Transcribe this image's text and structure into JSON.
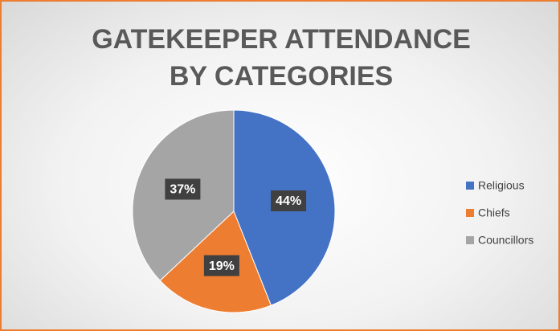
{
  "chart_data": {
    "type": "pie",
    "title": "GATEKEEPER ATTENDANCE BY CATEGORIES",
    "categories": [
      "Religious",
      "Chiefs",
      "Councillors"
    ],
    "values": [
      44,
      19,
      37
    ],
    "value_labels": [
      "44%",
      "19%",
      "37%"
    ],
    "colors": [
      "#4472c4",
      "#ed7d31",
      "#a5a5a5"
    ],
    "legend": "right"
  }
}
